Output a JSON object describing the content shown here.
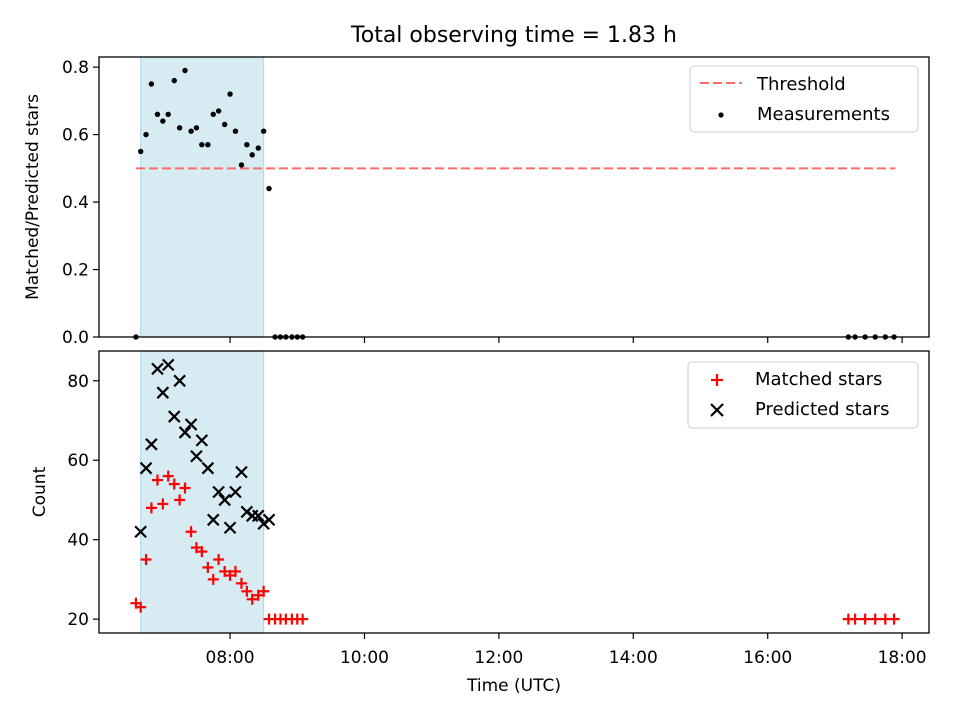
{
  "figure": {
    "title": "Total observing time = 1.83 h",
    "xlabel": "Time (UTC)",
    "shade_color": "#add8e6",
    "threshold_color": "#ff6b6b",
    "matched_color": "#ff0000",
    "predicted_color": "#000000",
    "measurement_color": "#000000"
  },
  "chart_data": [
    {
      "type": "scatter",
      "ylabel": "Matched/Predicted stars",
      "ylim": [
        0,
        0.83
      ],
      "yticks": [
        0.0,
        0.2,
        0.4,
        0.6,
        0.8
      ],
      "ytick_labels": [
        "0.0",
        "0.2",
        "0.4",
        "0.6",
        "0.8"
      ],
      "x_axis": "time_hours_utc",
      "xlim": [
        6.05,
        18.4
      ],
      "shaded_interval": [
        6.67,
        8.5
      ],
      "legend": {
        "location": "top-right",
        "entries": [
          "Threshold",
          "Measurements"
        ]
      },
      "threshold": {
        "name": "Threshold",
        "value": 0.5,
        "x_range": [
          6.6,
          17.9
        ],
        "style": "dashed"
      },
      "series": [
        {
          "name": "Measurements",
          "marker": "dot",
          "x": [
            6.6,
            6.67,
            6.75,
            6.83,
            6.92,
            7.0,
            7.08,
            7.17,
            7.25,
            7.33,
            7.42,
            7.5,
            7.58,
            7.67,
            7.75,
            7.83,
            7.92,
            8.0,
            8.08,
            8.17,
            8.25,
            8.33,
            8.42,
            8.5,
            8.58,
            8.67,
            8.75,
            8.83,
            8.92,
            9.0,
            9.08,
            17.2,
            17.3,
            17.45,
            17.6,
            17.75,
            17.88
          ],
          "y": [
            0.0,
            0.55,
            0.6,
            0.75,
            0.66,
            0.64,
            0.66,
            0.76,
            0.62,
            0.79,
            0.61,
            0.62,
            0.57,
            0.57,
            0.66,
            0.67,
            0.63,
            0.72,
            0.61,
            0.51,
            0.57,
            0.54,
            0.56,
            0.61,
            0.44,
            0.0,
            0.0,
            0.0,
            0.0,
            0.0,
            0.0,
            0.0,
            0.0,
            0.0,
            0.0,
            0.0,
            0.0
          ]
        }
      ]
    },
    {
      "type": "scatter",
      "ylabel": "Count",
      "ylim": [
        16.5,
        87.5
      ],
      "yticks": [
        20,
        40,
        60,
        80
      ],
      "ytick_labels": [
        "20",
        "40",
        "60",
        "80"
      ],
      "x_axis": "time_hours_utc",
      "xlim": [
        6.05,
        18.4
      ],
      "xticks": [
        8,
        10,
        12,
        14,
        16,
        18
      ],
      "xtick_labels": [
        "08:00",
        "10:00",
        "12:00",
        "14:00",
        "16:00",
        "18:00"
      ],
      "shaded_interval": [
        6.67,
        8.5
      ],
      "legend": {
        "location": "top-right",
        "entries": [
          "Matched stars",
          "Predicted stars"
        ]
      },
      "series": [
        {
          "name": "Matched stars",
          "marker": "plus",
          "x": [
            6.6,
            6.67,
            6.75,
            6.83,
            6.92,
            7.0,
            7.08,
            7.17,
            7.25,
            7.33,
            7.42,
            7.5,
            7.58,
            7.67,
            7.75,
            7.83,
            7.92,
            8.0,
            8.08,
            8.17,
            8.25,
            8.33,
            8.42,
            8.5,
            8.58,
            8.67,
            8.75,
            8.83,
            8.92,
            9.0,
            9.08,
            17.2,
            17.3,
            17.45,
            17.6,
            17.75,
            17.88
          ],
          "y": [
            24,
            23,
            35,
            48,
            55,
            49,
            56,
            54,
            50,
            53,
            42,
            38,
            37,
            33,
            30,
            35,
            32,
            31,
            32,
            29,
            27,
            25,
            26,
            27,
            20,
            20,
            20,
            20,
            20,
            20,
            20,
            20,
            20,
            20,
            20,
            20,
            20
          ]
        },
        {
          "name": "Predicted stars",
          "marker": "x",
          "x": [
            6.67,
            6.75,
            6.83,
            6.92,
            7.0,
            7.08,
            7.17,
            7.25,
            7.33,
            7.42,
            7.5,
            7.58,
            7.67,
            7.75,
            7.83,
            7.92,
            8.0,
            8.08,
            8.17,
            8.25,
            8.33,
            8.42,
            8.5,
            8.58
          ],
          "y": [
            42,
            58,
            64,
            83,
            77,
            84,
            71,
            80,
            67,
            69,
            61,
            65,
            58,
            45,
            52,
            50,
            43,
            52,
            57,
            47,
            46,
            46,
            44,
            45
          ]
        }
      ]
    }
  ]
}
